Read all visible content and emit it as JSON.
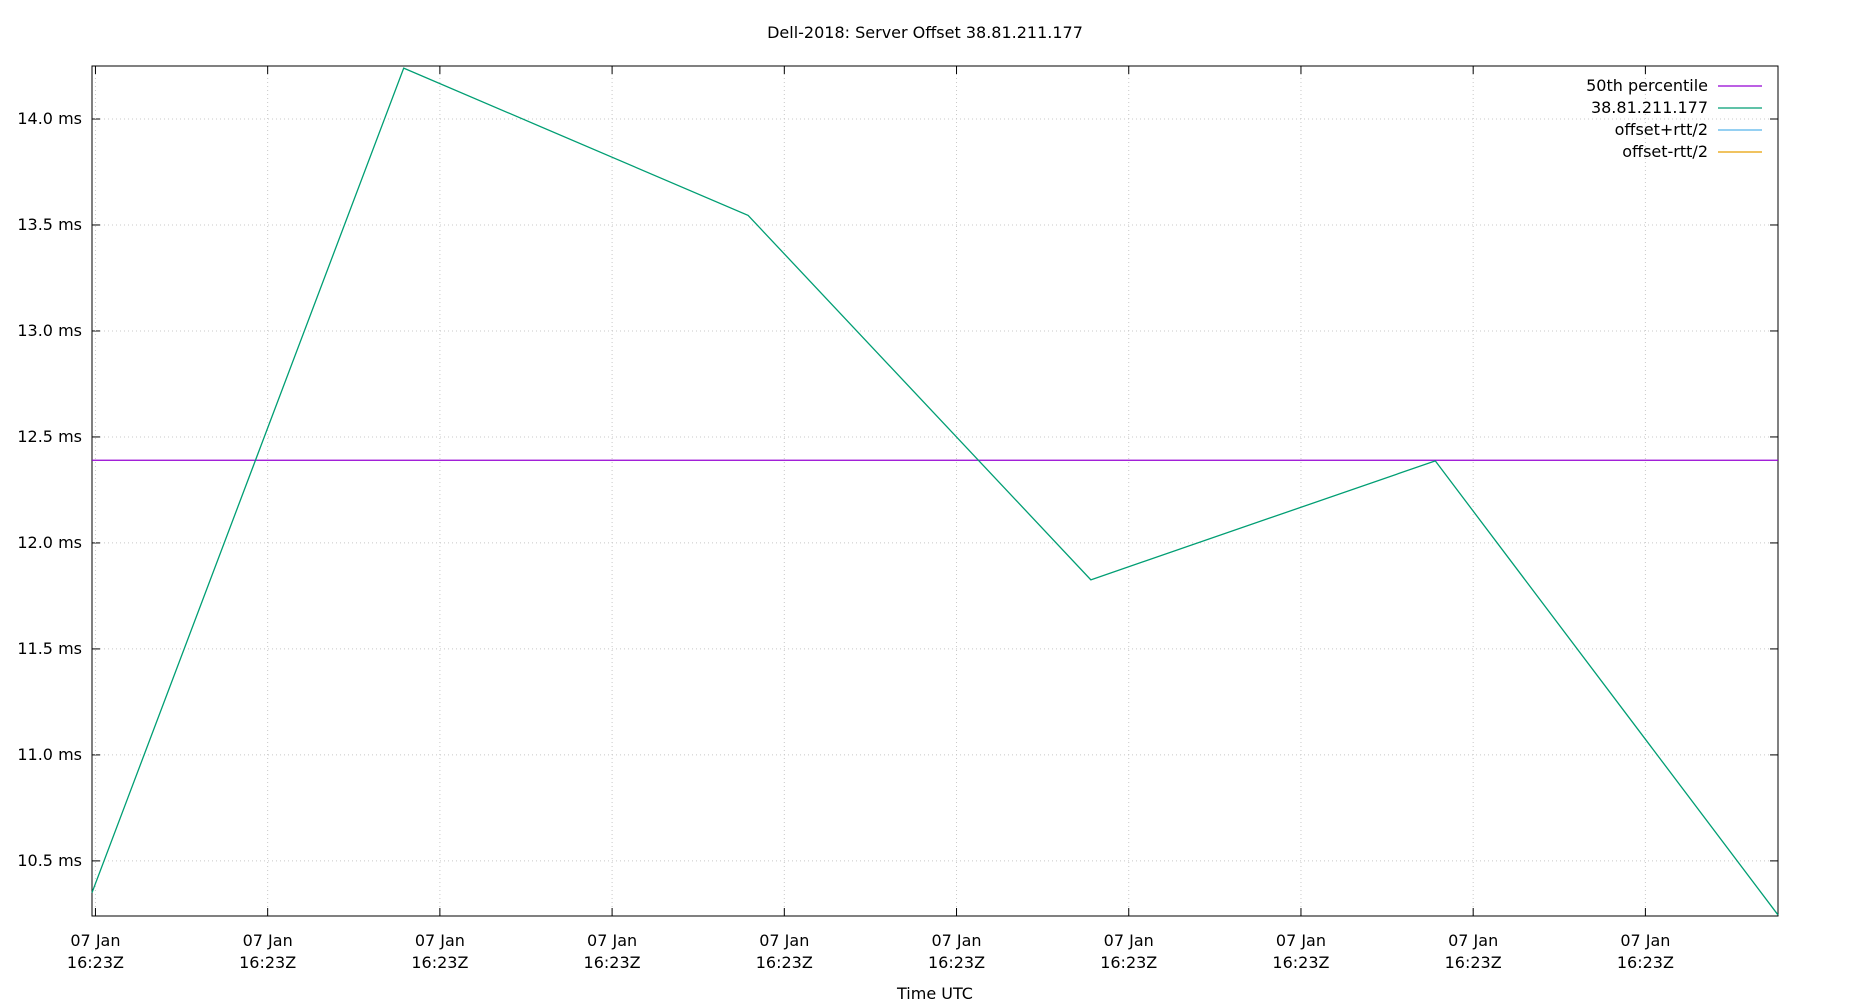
{
  "chart_data": {
    "type": "line",
    "title": "Dell-2018: Server Offset 38.81.211.177",
    "xlabel": "Time UTC",
    "x": [
      -0.2,
      17.9,
      37.9,
      57.8,
      77.8,
      97.7
    ],
    "xlim": [
      -0.2,
      97.7
    ],
    "xticks": [
      {
        "value": 0,
        "label": "07 Jan\n16:23Z"
      },
      {
        "value": 10,
        "label": "07 Jan\n16:23Z"
      },
      {
        "value": 20,
        "label": "07 Jan\n16:23Z"
      },
      {
        "value": 30,
        "label": "07 Jan\n16:23Z"
      },
      {
        "value": 40,
        "label": "07 Jan\n16:23Z"
      },
      {
        "value": 50,
        "label": "07 Jan\n16:23Z"
      },
      {
        "value": 60,
        "label": "07 Jan\n16:23Z"
      },
      {
        "value": 70,
        "label": "07 Jan\n16:23Z"
      },
      {
        "value": 80,
        "label": "07 Jan\n16:23Z"
      },
      {
        "value": 90,
        "label": "07 Jan\n16:23Z"
      }
    ],
    "ylim": [
      10.24,
      14.25
    ],
    "yticks": [
      {
        "value": 10.5,
        "label": "10.5 ms"
      },
      {
        "value": 11.0,
        "label": "11.0 ms"
      },
      {
        "value": 11.5,
        "label": "11.5 ms"
      },
      {
        "value": 12.0,
        "label": "12.0 ms"
      },
      {
        "value": 12.5,
        "label": "12.5 ms"
      },
      {
        "value": 13.0,
        "label": "13.0 ms"
      },
      {
        "value": 13.5,
        "label": "13.5 ms"
      },
      {
        "value": 14.0,
        "label": "14.0 ms"
      }
    ],
    "grid": true,
    "legend": "top-right",
    "series": [
      {
        "name": "50th percentile",
        "color": "#9400d3",
        "values": [
          12.39,
          12.39,
          12.39,
          12.39,
          12.39,
          12.39
        ]
      },
      {
        "name": "38.81.211.177",
        "color": "#009e73",
        "values": [
          10.35,
          14.24,
          13.545,
          11.826,
          12.387,
          10.245
        ]
      },
      {
        "name": "offset+rtt/2",
        "color": "#56b4e9",
        "values": [
          null,
          null,
          null,
          null,
          null,
          null
        ]
      },
      {
        "name": "offset-rtt/2",
        "color": "#e69f00",
        "values": [
          null,
          null,
          null,
          null,
          null,
          null
        ]
      }
    ]
  }
}
